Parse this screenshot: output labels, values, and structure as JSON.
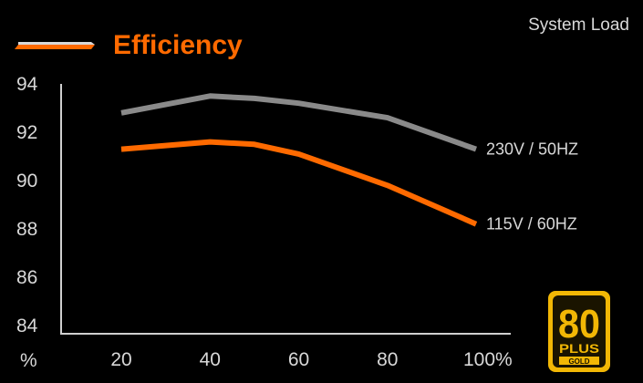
{
  "chart_data": {
    "type": "line",
    "title": "Efficiency",
    "x_axis_title": "System Load",
    "y_unit": "%",
    "x": [
      20,
      40,
      50,
      60,
      80,
      100
    ],
    "x_ticks": [
      20,
      40,
      60,
      80,
      100
    ],
    "x_tick_labels": [
      "20",
      "40",
      "60",
      "80",
      "100%"
    ],
    "y_ticks": [
      84,
      86,
      88,
      90,
      92,
      94
    ],
    "y_tick_labels": [
      "84",
      "86",
      "88",
      "90",
      "92",
      "94"
    ],
    "ylim": [
      84,
      94
    ],
    "xlim": [
      20,
      100
    ],
    "grid": false,
    "series": [
      {
        "name": "230V / 50HZ",
        "color": "#8a8a8a",
        "values": [
          92.8,
          93.5,
          93.4,
          93.2,
          92.6,
          91.3
        ]
      },
      {
        "name": "115V / 60HZ",
        "color": "#ff6a00",
        "values": [
          91.3,
          91.6,
          91.5,
          91.1,
          89.8,
          88.2
        ]
      }
    ],
    "legend_swatch_color": "#ff6a00",
    "title_color": "#ff6a00",
    "text_color": "#d8d8d8"
  },
  "badge": {
    "number": "80",
    "word": "PLUS",
    "grade": "GOLD",
    "color": "#f2b705",
    "inner_color": "#1a1400"
  }
}
